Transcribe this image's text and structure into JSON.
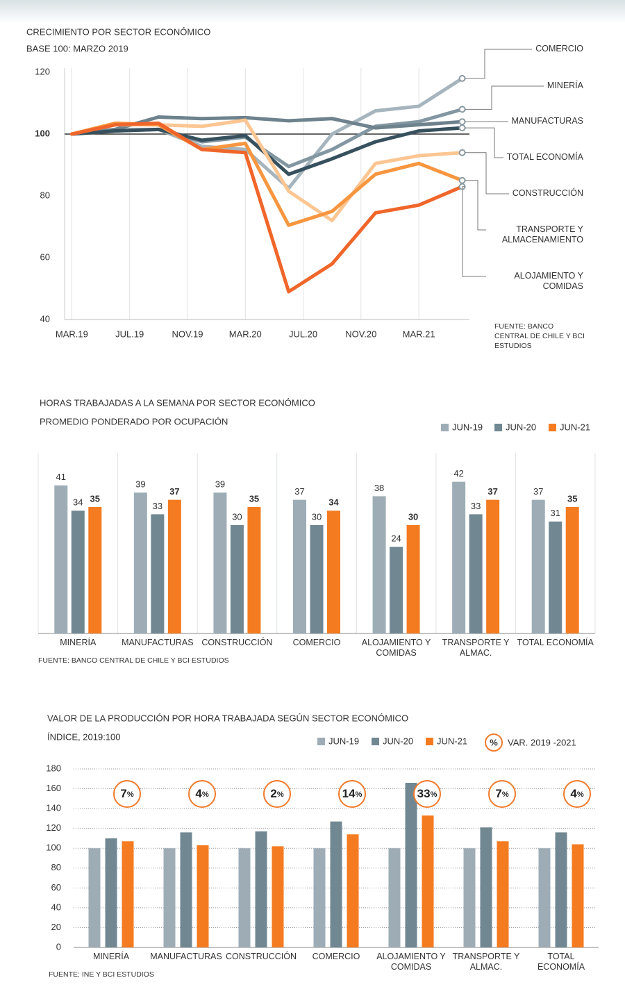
{
  "chart_data": [
    {
      "type": "line",
      "title": "CRECIMIENTO POR SECTOR ECONÓMICO",
      "subtitle": "BASE 100: MARZO 2019",
      "source": "FUENTE: BANCO CENTRAL DE CHILE Y BCI ESTUDIOS",
      "x": [
        0,
        3,
        6,
        9,
        12,
        15,
        18,
        21,
        24,
        27
      ],
      "xlim": [
        -0.5,
        27.5
      ],
      "xticks": [
        {
          "value": 0,
          "label": "MAR.19"
        },
        {
          "value": 4,
          "label": "JUL.19"
        },
        {
          "value": 8,
          "label": "NOV.19"
        },
        {
          "value": 12,
          "label": "MAR.20"
        },
        {
          "value": 16,
          "label": "JUL.20"
        },
        {
          "value": 20,
          "label": "NOV.20"
        },
        {
          "value": 24,
          "label": "MAR.21"
        }
      ],
      "ylim": [
        40,
        120
      ],
      "yticks": [
        40,
        60,
        80,
        100,
        120
      ],
      "reference_line": 100,
      "grid": "x",
      "series": [
        {
          "name": "COMERCIO",
          "color": "#a6b5bd",
          "values": [
            100,
            101.5,
            101.5,
            96,
            95,
            82.5,
            100,
            107.5,
            109,
            118
          ]
        },
        {
          "name": "MINERÍA",
          "color": "#8397a2",
          "values": [
            100,
            101,
            101.5,
            97.5,
            99,
            89.5,
            95,
            102.5,
            104,
            108
          ]
        },
        {
          "name": "MANUFACTURAS",
          "color": "#6d828d",
          "values": [
            100,
            101.5,
            105.5,
            105,
            105.3,
            104.3,
            105,
            102,
            103,
            104
          ]
        },
        {
          "name": "TOTAL ECONOMÍA",
          "color": "#36505d",
          "values": [
            100,
            101,
            101.5,
            98,
            99.5,
            87,
            92,
            97.5,
            101,
            102
          ]
        },
        {
          "name": "CONSTRUCCIÓN",
          "color": "#fcc693",
          "values": [
            100,
            103,
            103,
            102.5,
            104.5,
            81.5,
            72,
            90.5,
            93,
            94
          ]
        },
        {
          "name": "TRANSPORTE Y ALMACENAMIENTO",
          "color": "#f7963f",
          "values": [
            100,
            103.5,
            103,
            95,
            97,
            70.5,
            75,
            87,
            90.5,
            85
          ]
        },
        {
          "name": "ALOJAMIENTO Y COMIDAS",
          "color": "#f0662a",
          "values": [
            100,
            103,
            103.5,
            95,
            94,
            49,
            58,
            74.5,
            77,
            83
          ]
        }
      ]
    },
    {
      "type": "bar",
      "title": "HORAS TRABAJADAS A LA SEMANA POR SECTOR ECONÓMICO",
      "subtitle": "PROMEDIO PONDERADO POR OCUPACIÓN",
      "source": "FUENTE: BANCO CENTRAL DE CHILE Y BCI ESTUDIOS",
      "categories": [
        "MINERÍA",
        "MANUFACTURAS",
        "CONSTRUCCIÓN",
        "COMERCIO",
        "ALOJAMIENTO Y COMIDAS",
        "TRANSPORTE Y ALMAC.",
        "TOTAL ECONOMÍA"
      ],
      "ylim": [
        0,
        50
      ],
      "data_labels": true,
      "legend": "top-right",
      "series": [
        {
          "name": "JUN-19",
          "color": "#9eadb5",
          "values": [
            41,
            39,
            39,
            37,
            38,
            42,
            37
          ]
        },
        {
          "name": "JUN-20",
          "color": "#718893",
          "values": [
            34,
            33,
            30,
            30,
            24,
            33,
            31
          ]
        },
        {
          "name": "JUN-21",
          "color": "#f47b20",
          "values": [
            35,
            37,
            35,
            34,
            30,
            37,
            35
          ]
        }
      ]
    },
    {
      "type": "bar",
      "title": "VALOR DE LA PRODUCCIÓN POR HORA TRABAJADA SEGÚN SECTOR ECONÓMICO",
      "subtitle": "ÍNDICE, 2019:100",
      "source": "FUENTE: INE Y BCI ESTUDIOS",
      "categories": [
        "MINERÍA",
        "MANUFACTURAS",
        "CONSTRUCCIÓN",
        "COMERCIO",
        "ALOJAMIENTO Y COMIDAS",
        "TRANSPORTE Y ALMAC.",
        "TOTAL ECONOMÍA"
      ],
      "ylim": [
        0,
        180
      ],
      "yticks": [
        0,
        20,
        40,
        60,
        80,
        100,
        120,
        140,
        160,
        180
      ],
      "grid": true,
      "legend": "top-right",
      "series": [
        {
          "name": "JUN-19",
          "color": "#9eadb5",
          "values": [
            100,
            100,
            100,
            100,
            100,
            100,
            100
          ]
        },
        {
          "name": "JUN-20",
          "color": "#718893",
          "values": [
            110,
            116,
            117,
            127,
            166,
            121,
            116
          ]
        },
        {
          "name": "JUN-21",
          "color": "#f47b20",
          "values": [
            107,
            103,
            102,
            114,
            133,
            107,
            104
          ]
        }
      ],
      "variation": {
        "name": "VAR. 2019 -2021",
        "symbol": "%",
        "color": "#f07a2c",
        "values": [
          7,
          4,
          2,
          14,
          33,
          7,
          4
        ]
      }
    }
  ]
}
